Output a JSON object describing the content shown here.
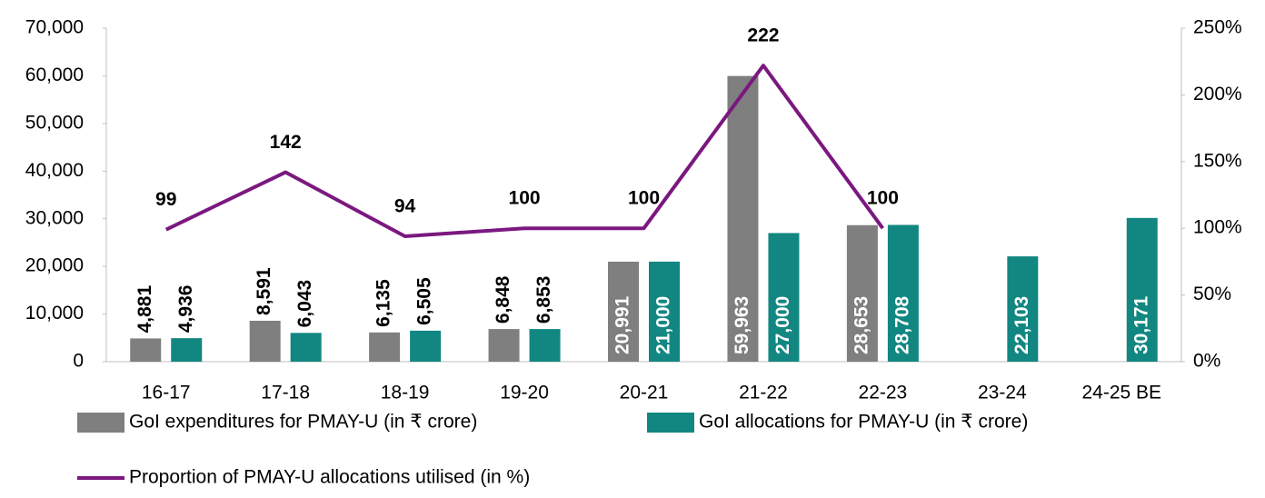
{
  "chart_data": {
    "type": "bar",
    "categories": [
      "16-17",
      "17-18",
      "18-19",
      "19-20",
      "20-21",
      "21-22",
      "22-23",
      "23-24",
      "24-25 BE"
    ],
    "series": [
      {
        "name": "GoI expenditures for PMAY-U (in ₹ crore)",
        "color": "#7f7f7f",
        "type": "bar",
        "values": [
          4881,
          8591,
          6135,
          6848,
          20991,
          59963,
          28653,
          null,
          null
        ],
        "value_labels": [
          "4,881",
          "8,591",
          "6,135",
          "6,848",
          "20,991",
          "59,963",
          "28,653",
          null,
          null
        ]
      },
      {
        "name": "GoI allocations for PMAY-U (in ₹ crore)",
        "color": "#128781",
        "type": "bar",
        "values": [
          4936,
          6043,
          6505,
          6853,
          21000,
          27000,
          28708,
          22103,
          30171
        ],
        "value_labels": [
          "4,936",
          "6,043",
          "6,505",
          "6,853",
          "21,000",
          "27,000",
          "28,708",
          "22,103",
          "30,171"
        ]
      },
      {
        "name": "Proportion of PMAY-U allocations utilised (in %)",
        "color": "#7b1880",
        "type": "line",
        "axis": "y2",
        "values": [
          99,
          142,
          94,
          100,
          100,
          222,
          100,
          null,
          null
        ]
      }
    ],
    "ylim": [
      0,
      70000
    ],
    "yticks": [
      0,
      {
        "value": 10000,
        "label": "10,000"
      },
      {
        "value": 20000,
        "label": "20,000"
      },
      {
        "value": 30000,
        "label": "30,000"
      },
      {
        "value": 40000,
        "label": "40,000"
      },
      {
        "value": 50000,
        "label": "50,000"
      },
      {
        "value": 60000,
        "label": "60,000"
      },
      {
        "value": 70000,
        "label": "70,000"
      }
    ],
    "y2lim": [
      0,
      250
    ],
    "y2ticks": [
      {
        "value": 0,
        "label": "0%"
      },
      {
        "value": 50,
        "label": "50%"
      },
      {
        "value": 100,
        "label": "100%"
      },
      {
        "value": 150,
        "label": "150%"
      },
      {
        "value": 200,
        "label": "200%"
      },
      {
        "value": 250,
        "label": "250%"
      }
    ],
    "grid": false,
    "legend": "bottom"
  }
}
